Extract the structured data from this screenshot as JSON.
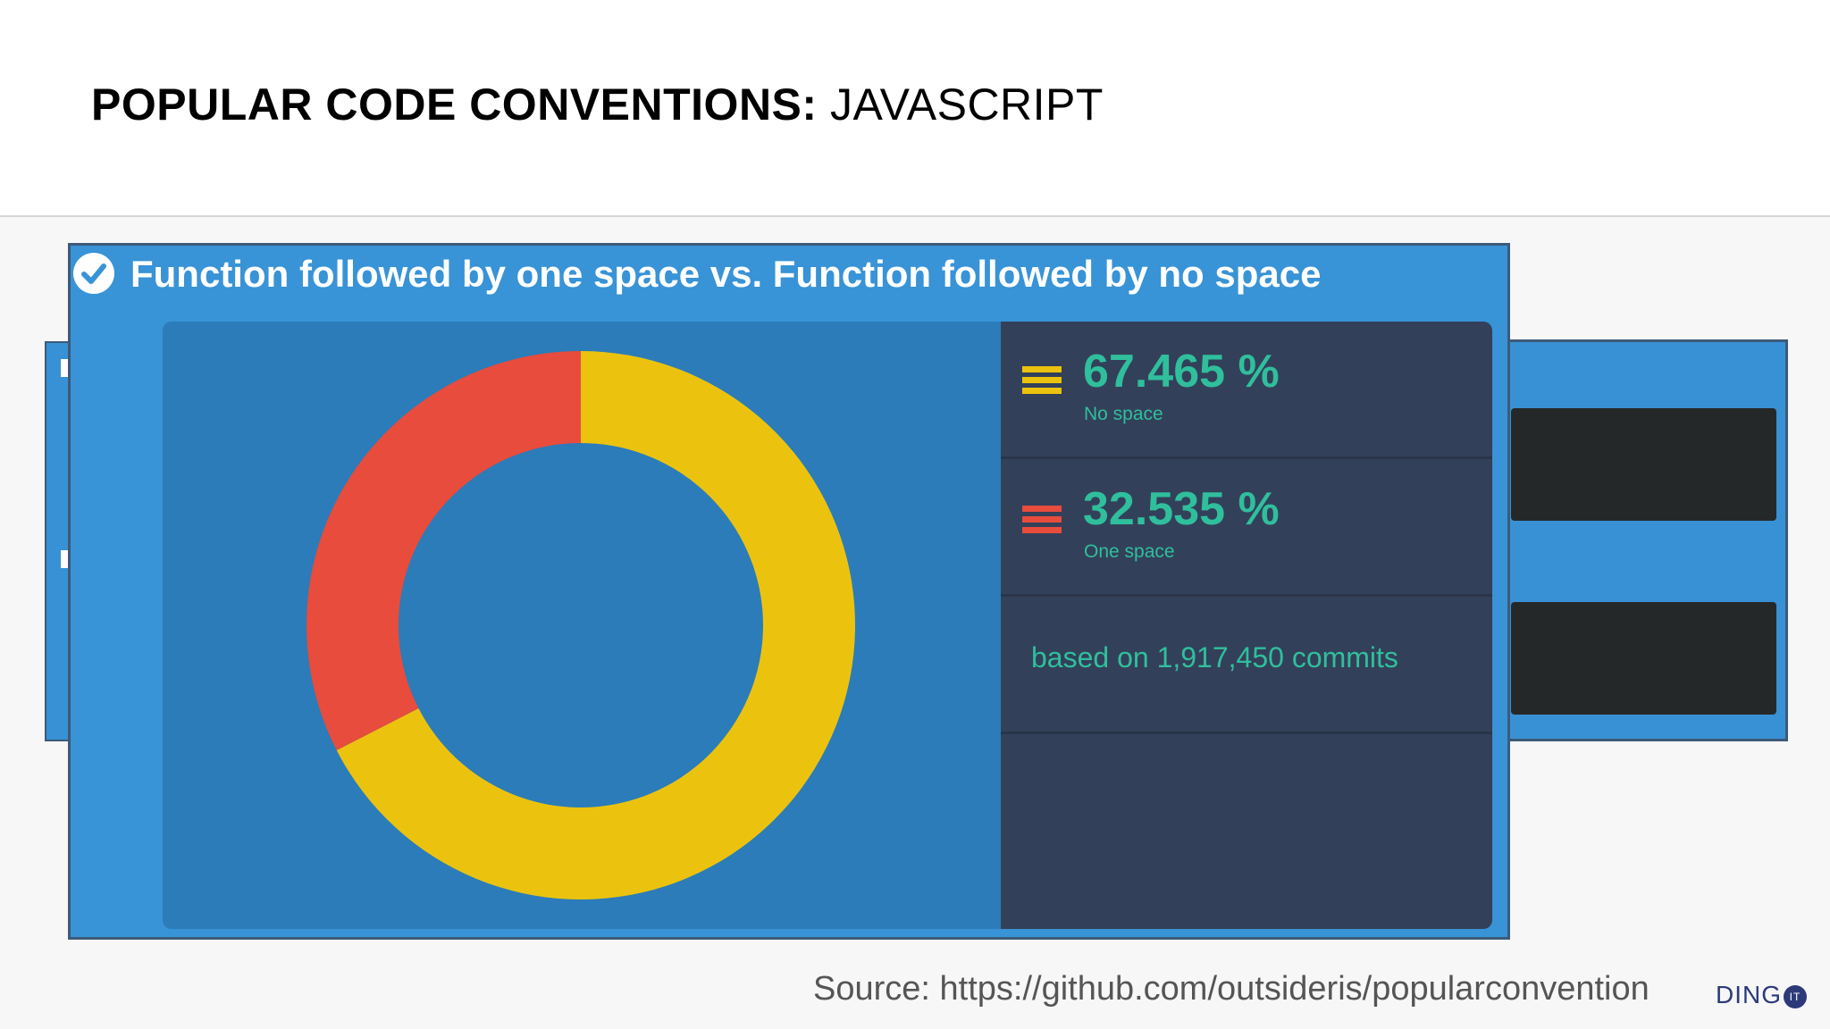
{
  "slide": {
    "title_bold": "POPULAR CODE CONVENTIONS:",
    "title_light": "JAVASCRIPT"
  },
  "card": {
    "heading": "Function followed by one space vs. Function followed by no space",
    "icon": "check-circle-icon"
  },
  "chart_data": {
    "type": "pie",
    "variant": "donut",
    "series": [
      {
        "name": "No space",
        "value": 67.465,
        "color": "#ebc30f"
      },
      {
        "name": "One space",
        "value": 32.535,
        "color": "#e74c3c"
      }
    ]
  },
  "stats": {
    "no_space": {
      "value": "67.465 %",
      "label": "No space",
      "color": "#ebc30f"
    },
    "one_space": {
      "value": "32.535 %",
      "label": "One space",
      "color": "#e74c3c"
    },
    "based_on": "based on 1,917,450 commits"
  },
  "footer": {
    "source": "Source: https://github.com/outsideris/popularconvention",
    "logo_text": "DING",
    "logo_badge": "IT"
  },
  "colors": {
    "card_blue": "#3893d7",
    "chart_bg": "#2b7cb9",
    "stats_bg": "#33405a",
    "accent_teal": "#2fbf9c"
  }
}
